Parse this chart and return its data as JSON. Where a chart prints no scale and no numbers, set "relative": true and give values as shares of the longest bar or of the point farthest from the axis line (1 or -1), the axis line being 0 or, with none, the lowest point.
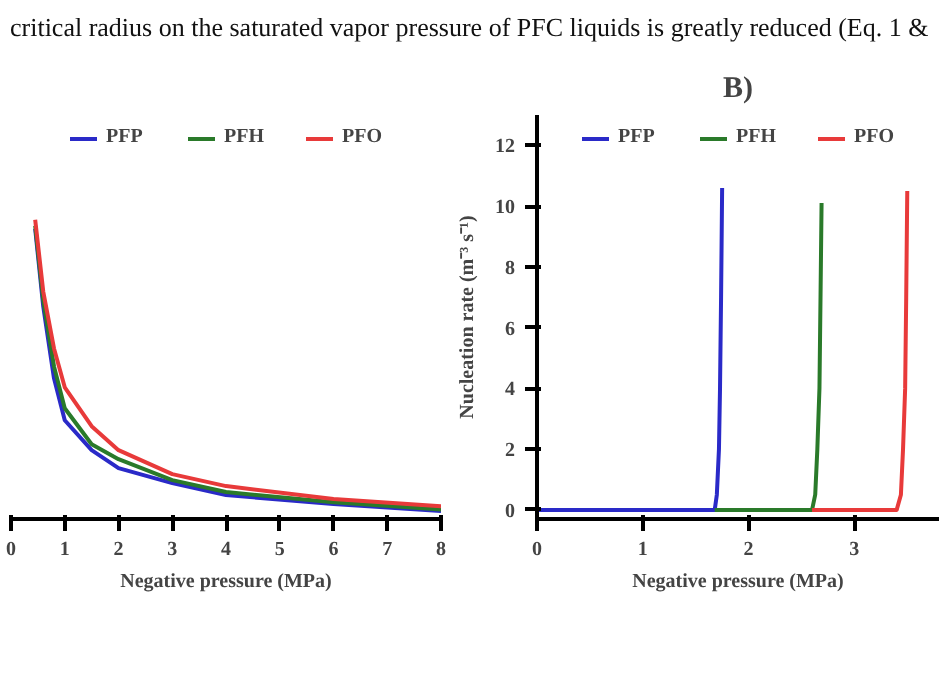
{
  "chart_data": [
    {
      "type": "line",
      "relative": true,
      "annotations": [
        "critical radius on the saturated vapor pressure of PFC liquids is greatly reduced (Eq. 1 &"
      ],
      "xlabel": "Negative pressure (MPa)",
      "xlim": [
        0,
        8
      ],
      "xticks": [
        0,
        1,
        2,
        3,
        4,
        5,
        6,
        7,
        8
      ],
      "legend": "top",
      "grid": false,
      "series": [
        {
          "name": "PFP",
          "color": "#2a2ac8",
          "x": [
            0.45,
            0.6,
            0.8,
            1,
            1.5,
            2,
            3,
            4,
            6,
            8
          ],
          "values": [
            0.97,
            0.71,
            0.47,
            0.33,
            0.23,
            0.17,
            0.12,
            0.08,
            0.05,
            0.027
          ]
        },
        {
          "name": "PFH",
          "color": "#2a7a2a",
          "x": [
            0.45,
            0.6,
            0.8,
            1,
            1.5,
            2,
            3,
            4,
            6,
            8
          ],
          "values": [
            0.98,
            0.73,
            0.51,
            0.37,
            0.25,
            0.2,
            0.13,
            0.09,
            0.056,
            0.032
          ]
        },
        {
          "name": "PFO",
          "color": "#e83a3a",
          "x": [
            0.45,
            0.6,
            0.8,
            1,
            1.5,
            2,
            3,
            4,
            6,
            8
          ],
          "values": [
            1.0,
            0.76,
            0.57,
            0.44,
            0.31,
            0.23,
            0.15,
            0.11,
            0.067,
            0.043
          ]
        }
      ]
    },
    {
      "type": "line",
      "title": "B)",
      "xlabel": "Negative pressure (MPa)",
      "ylabel": "Nucleation rate (m⁻³ s⁻¹)",
      "xlim": [
        0,
        3.8
      ],
      "xticks": [
        0,
        1,
        2,
        3
      ],
      "ylim": [
        -0.3,
        13
      ],
      "yticks": [
        0,
        2,
        4,
        6,
        8,
        10,
        12
      ],
      "legend": "top",
      "grid": false,
      "series": [
        {
          "name": "PFP",
          "color": "#2a2ac8",
          "x": [
            0,
            1.68,
            1.7,
            1.72,
            1.73,
            1.74,
            1.75
          ],
          "values": [
            0,
            0,
            0.5,
            2,
            4,
            7,
            10.6
          ]
        },
        {
          "name": "PFH",
          "color": "#2a7a2a",
          "x": [
            1.68,
            2.6,
            2.63,
            2.65,
            2.67,
            2.68,
            2.69
          ],
          "values": [
            0,
            0,
            0.5,
            2,
            4,
            7,
            10.1
          ]
        },
        {
          "name": "PFO",
          "color": "#e83a3a",
          "x": [
            2.6,
            3.4,
            3.44,
            3.46,
            3.48,
            3.49,
            3.5
          ],
          "values": [
            0,
            0,
            0.5,
            2,
            4,
            7,
            10.5
          ]
        }
      ]
    }
  ]
}
